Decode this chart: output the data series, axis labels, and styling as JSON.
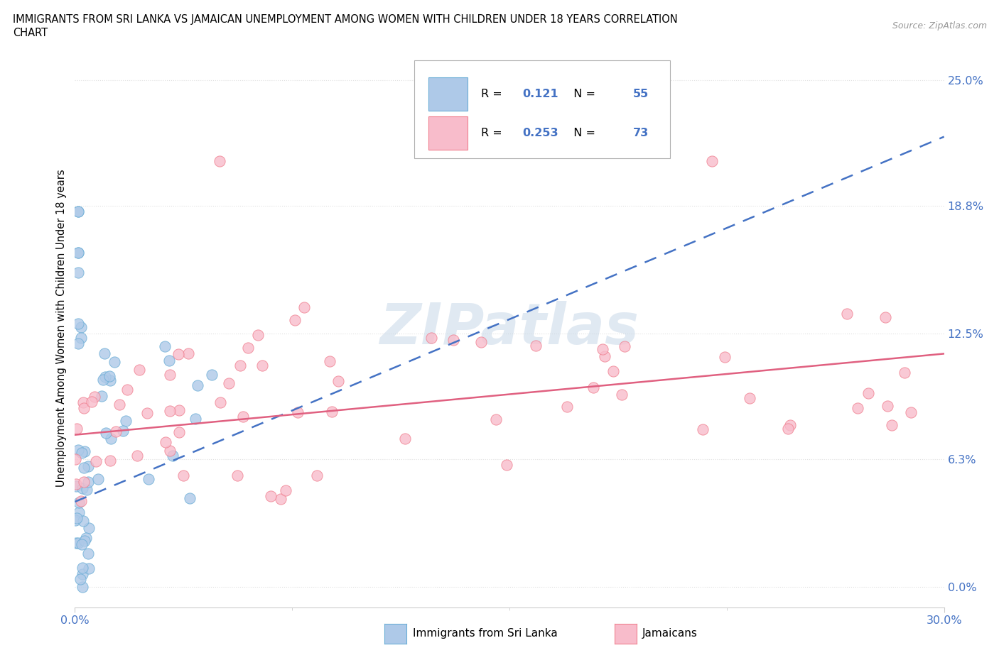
{
  "title_line1": "IMMIGRANTS FROM SRI LANKA VS JAMAICAN UNEMPLOYMENT AMONG WOMEN WITH CHILDREN UNDER 18 YEARS CORRELATION",
  "title_line2": "CHART",
  "source_text": "Source: ZipAtlas.com",
  "ylabel": "Unemployment Among Women with Children Under 18 years",
  "xmin": 0.0,
  "xmax": 0.3,
  "ymin": -0.01,
  "ymax": 0.265,
  "yticks": [
    0.0,
    0.063,
    0.125,
    0.188,
    0.25
  ],
  "ytick_labels": [
    "0.0%",
    "6.3%",
    "12.5%",
    "18.8%",
    "25.0%"
  ],
  "xticks": [
    0.0,
    0.3
  ],
  "xtick_labels": [
    "0.0%",
    "30.0%"
  ],
  "sri_lanka_color": "#6baed6",
  "sri_lanka_color_fill": "#aec9e8",
  "jamaican_color": "#f08090",
  "jamaican_color_fill": "#f8bccb",
  "sri_lanka_R": 0.121,
  "sri_lanka_N": 55,
  "jamaican_R": 0.253,
  "jamaican_N": 73,
  "watermark": "ZIPatlas",
  "background_color": "#ffffff",
  "grid_color": "#e0e0e0",
  "trendline_blue_color": "#4472c4",
  "trendline_pink_color": "#e06080"
}
